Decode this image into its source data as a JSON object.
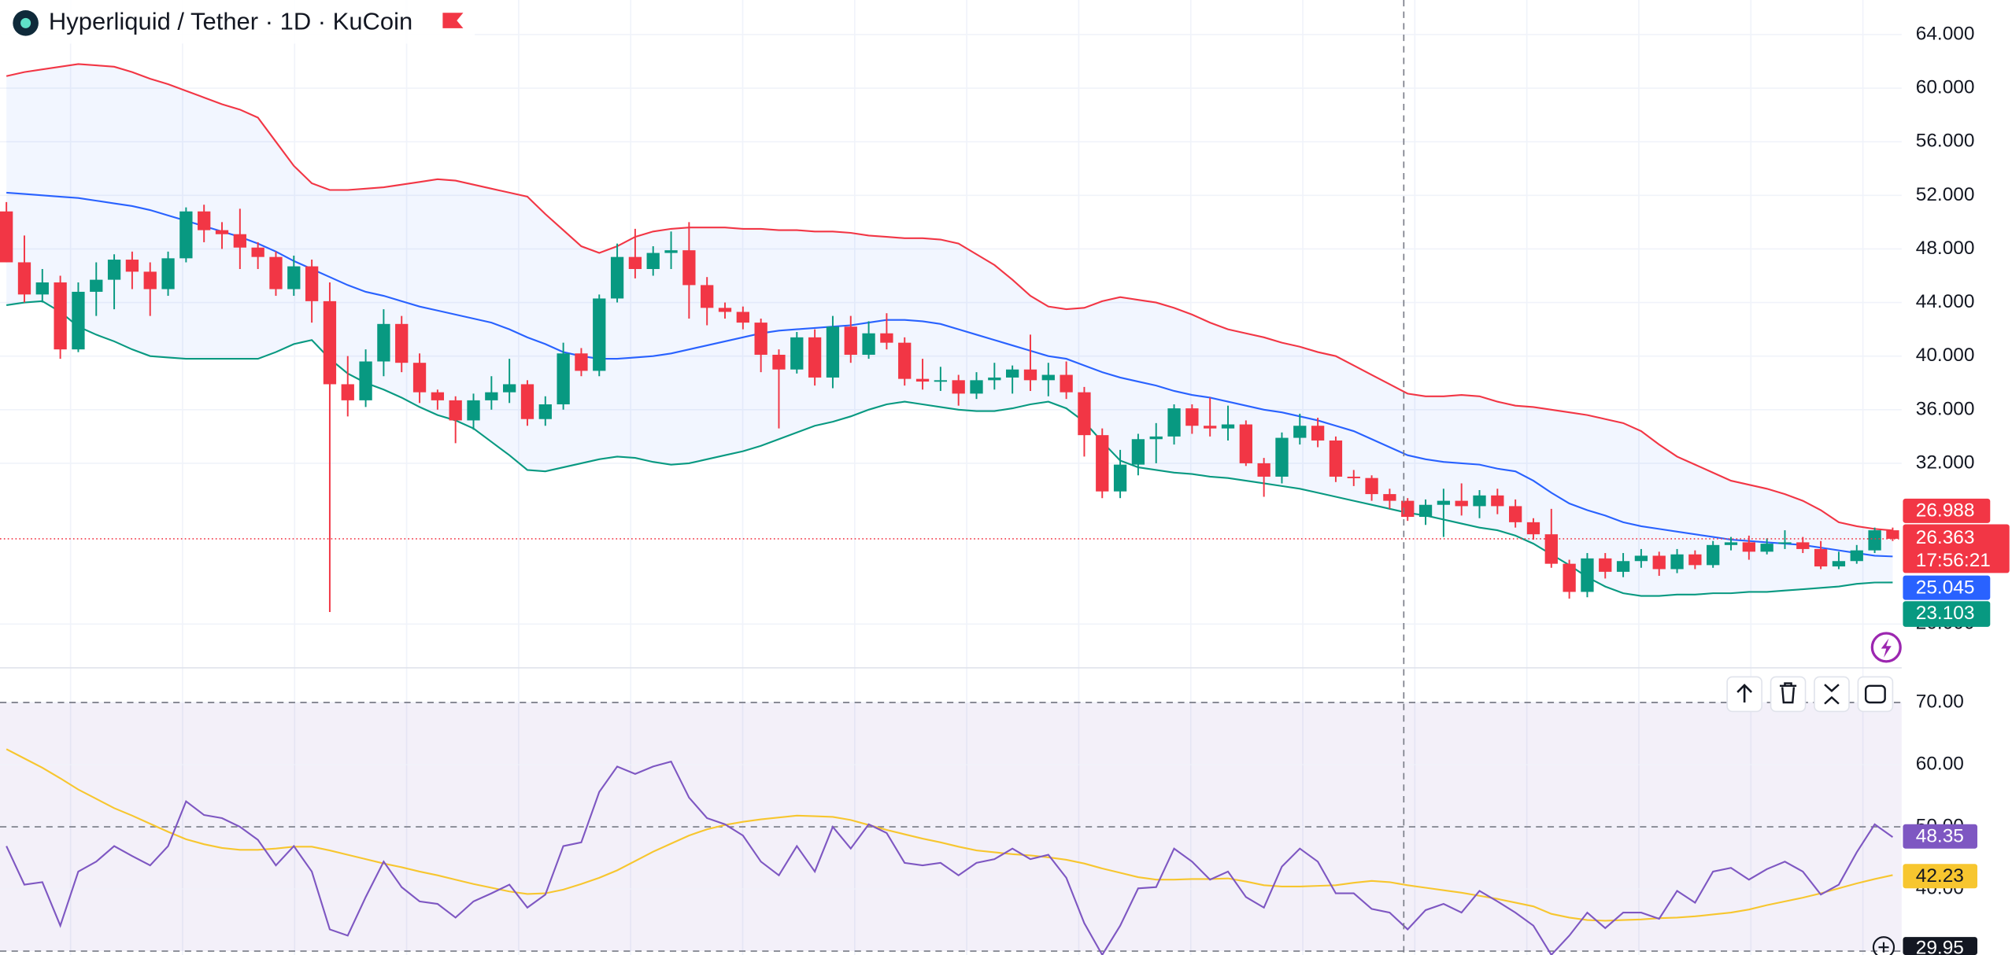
{
  "chart_data": [
    {
      "type": "candlestick",
      "title": "Hyperliquid / Tether · 1D · KuCoin",
      "ylim": [
        16.73,
        66.58
      ],
      "yticks": [
        {
          "value": 64,
          "label": "64.000"
        },
        {
          "value": 60,
          "label": "60.000"
        },
        {
          "value": 56,
          "label": "56.000"
        },
        {
          "value": 52,
          "label": "52.000"
        },
        {
          "value": 48,
          "label": "48.000"
        },
        {
          "value": 44,
          "label": "44.000"
        },
        {
          "value": 40,
          "label": "40.000"
        },
        {
          "value": 36,
          "label": "36.000"
        },
        {
          "value": 32,
          "label": "32.000"
        },
        {
          "value": 20,
          "label": "20.000"
        }
      ],
      "up_color": "#089981",
      "down_color": "#f23645",
      "open": [
        50.8,
        47,
        44.6,
        45.5,
        40.5,
        44.8,
        45.7,
        47.2,
        46.3,
        45,
        47.3,
        50.8,
        49.4,
        49.1,
        48.1,
        47.4,
        45,
        46.7,
        44.1,
        37.9,
        36.7,
        39.6,
        42.4,
        39.5,
        37.3,
        36.7,
        35.2,
        36.7,
        37.3,
        37.9,
        35.3,
        36.4,
        40.2,
        38.9,
        44.3,
        47.4,
        46.5,
        47.7,
        47.9,
        45.3,
        43.6,
        43.3,
        42.5,
        40.1,
        39,
        41.4,
        38.4,
        42.2,
        40.1,
        41.7,
        41,
        38.3,
        38.1,
        38.2,
        37.2,
        38.2,
        38.4,
        39,
        38.2,
        38.6,
        37.3,
        34.1,
        29.9,
        31.9,
        33.8,
        34,
        36.1,
        34.8,
        34.6,
        34.9,
        32,
        31,
        33.9,
        34.8,
        33.7,
        31,
        30.9,
        29.7,
        29.2,
        28,
        28.9,
        29.2,
        28.8,
        29.6,
        28.8,
        27.6,
        26.7,
        24.5,
        22.4,
        24.9,
        23.9,
        24.7,
        25.1,
        24.1,
        25.2,
        24.4,
        25.9,
        26.1,
        25.4,
        26,
        26.1,
        25.6,
        24.3,
        24.7,
        25.5,
        27
      ],
      "high": [
        51.5,
        49,
        46.5,
        46,
        45.5,
        47,
        47.6,
        47.8,
        47,
        47.8,
        51.1,
        51.3,
        50,
        51,
        48.5,
        47.8,
        47.5,
        47.2,
        45.5,
        40,
        40.5,
        43.5,
        43,
        40.2,
        37.5,
        37,
        37.2,
        38.5,
        39.8,
        38.2,
        37,
        41,
        40.6,
        44.6,
        48.4,
        49.5,
        48.2,
        49.3,
        50,
        45.9,
        44,
        43.7,
        42.8,
        40.5,
        41.8,
        42,
        43,
        43,
        42.6,
        43.2,
        41.4,
        39.8,
        39.2,
        38.6,
        38.8,
        39.5,
        39.3,
        41.6,
        39.5,
        39.6,
        37.7,
        34.6,
        33,
        34.2,
        35,
        36.4,
        36.4,
        36.9,
        36.3,
        35.2,
        32.4,
        34.3,
        35.7,
        35.4,
        34,
        31.5,
        31.1,
        30.1,
        29.4,
        29.3,
        30.1,
        30.5,
        30,
        30.1,
        29.3,
        27.9,
        28.6,
        24.8,
        25.3,
        25.3,
        25.3,
        25.6,
        25.4,
        25.6,
        25.5,
        26.2,
        26.5,
        26.6,
        26.4,
        27,
        26.5,
        26.2,
        25.4,
        25.9,
        27.2,
        27.2
      ],
      "low": [
        47,
        44,
        44,
        39.8,
        40.3,
        43,
        43.5,
        45,
        43,
        44.5,
        47,
        48.5,
        48,
        46.5,
        46.5,
        44.5,
        44.5,
        42.5,
        20.9,
        35.5,
        36.2,
        38.5,
        38.8,
        36.5,
        36,
        33.5,
        34.5,
        36,
        36.5,
        34.8,
        34.8,
        36,
        38.5,
        38.5,
        44,
        45.8,
        46,
        46.5,
        42.8,
        42.3,
        42.8,
        42,
        38.8,
        34.6,
        38.7,
        37.8,
        37.6,
        39.5,
        39.8,
        40.5,
        37.8,
        37.5,
        37.4,
        36.3,
        36.8,
        37.5,
        37.2,
        37.4,
        37,
        36.8,
        32.5,
        29.4,
        29.4,
        31.1,
        32,
        33.4,
        34.2,
        34,
        33.7,
        31.8,
        29.5,
        30.5,
        33.4,
        33.2,
        30.6,
        30.3,
        29.2,
        28.6,
        27.7,
        27.4,
        26.5,
        28.1,
        27.9,
        28.2,
        27.2,
        26.3,
        24.2,
        21.9,
        22,
        23.4,
        23.5,
        24.2,
        23.6,
        23.8,
        24.1,
        24.2,
        25.5,
        24.8,
        25.2,
        25.6,
        25.3,
        24.1,
        24.1,
        24.5,
        25.3,
        26.2
      ],
      "close": [
        47,
        44.6,
        45.5,
        40.5,
        44.8,
        45.7,
        47.2,
        46.3,
        45,
        47.3,
        50.8,
        49.4,
        49.1,
        48.1,
        47.4,
        45,
        46.7,
        44.1,
        37.9,
        36.7,
        39.6,
        42.4,
        39.5,
        37.3,
        36.7,
        35.2,
        36.7,
        37.3,
        37.9,
        35.3,
        36.4,
        40.2,
        38.9,
        44.3,
        47.4,
        46.5,
        47.7,
        47.9,
        45.3,
        43.6,
        43.3,
        42.5,
        40.1,
        39,
        41.4,
        38.4,
        42.2,
        40.1,
        41.7,
        41,
        38.3,
        38.1,
        38.2,
        37.2,
        38.2,
        38.4,
        39,
        38.2,
        38.6,
        37.3,
        34.1,
        29.9,
        31.9,
        33.8,
        34,
        36.1,
        34.8,
        34.6,
        34.9,
        32,
        31,
        33.9,
        34.8,
        33.7,
        31,
        30.9,
        29.7,
        29.2,
        28,
        28.9,
        29.2,
        28.8,
        29.6,
        28.8,
        27.6,
        26.7,
        24.5,
        22.4,
        24.9,
        23.9,
        24.7,
        25.1,
        24.1,
        25.2,
        24.4,
        25.9,
        26.1,
        25.4,
        26,
        26.1,
        25.6,
        24.3,
        24.7,
        25.5,
        27,
        26.363
      ],
      "countdown": "17:56:21",
      "bands": [
        {
          "color": "#f23645",
          "values": [
            60.9,
            61.2,
            61.4,
            61.6,
            61.8,
            61.7,
            61.6,
            61.2,
            60.7,
            60.3,
            59.8,
            59.3,
            58.8,
            58.4,
            57.8,
            56,
            54.2,
            52.9,
            52.4,
            52.4,
            52.5,
            52.6,
            52.8,
            53,
            53.2,
            53.1,
            52.8,
            52.5,
            52.2,
            51.9,
            50.6,
            49.4,
            48.2,
            47.7,
            48.2,
            48.9,
            49.3,
            49.5,
            49.6,
            49.6,
            49.6,
            49.5,
            49.5,
            49.4,
            49.4,
            49.3,
            49.3,
            49.2,
            49,
            48.9,
            48.8,
            48.8,
            48.7,
            48.4,
            47.6,
            46.8,
            45.7,
            44.5,
            43.7,
            43.5,
            43.6,
            44.1,
            44.4,
            44.2,
            44,
            43.6,
            43.1,
            42.5,
            42,
            41.7,
            41.4,
            41,
            40.7,
            40.3,
            40,
            39.3,
            38.6,
            37.9,
            37.2,
            37,
            37,
            37.1,
            37,
            36.6,
            36.3,
            36.2,
            36,
            35.8,
            35.6,
            35.3,
            35,
            34.4,
            33.4,
            32.5,
            31.9,
            31.3,
            30.7,
            30.4,
            30.1,
            29.7,
            29.2,
            28.5,
            27.6,
            27.3,
            27.1,
            26.988
          ]
        },
        {
          "color": "#2962ff",
          "values": [
            52.2,
            52.1,
            52,
            51.9,
            51.8,
            51.6,
            51.4,
            51.2,
            50.9,
            50.5,
            50.1,
            49.7,
            49.3,
            48.9,
            48.4,
            47.8,
            47.1,
            46.5,
            45.9,
            45.3,
            44.8,
            44.5,
            44.1,
            43.7,
            43.4,
            43.1,
            42.8,
            42.5,
            42,
            41.4,
            40.9,
            40.3,
            40,
            39.8,
            39.8,
            39.9,
            40,
            40.2,
            40.5,
            40.8,
            41.1,
            41.4,
            41.7,
            41.9,
            42,
            42.1,
            42.2,
            42.3,
            42.5,
            42.7,
            42.7,
            42.6,
            42.4,
            42,
            41.6,
            41.2,
            40.8,
            40.4,
            40,
            39.8,
            39.3,
            38.8,
            38.4,
            38.1,
            37.8,
            37.4,
            37.1,
            36.9,
            36.6,
            36.3,
            36,
            35.8,
            35.5,
            35.2,
            34.8,
            34.4,
            33.8,
            33.2,
            32.6,
            32.3,
            32.1,
            32,
            31.9,
            31.6,
            31.4,
            30.7,
            29.8,
            29,
            28.5,
            28.1,
            27.6,
            27.3,
            27.1,
            26.9,
            26.7,
            26.5,
            26.3,
            26.2,
            26.1,
            26,
            25.9,
            25.7,
            25.5,
            25.3,
            25.1,
            25.045
          ]
        },
        {
          "color": "#089981",
          "values": [
            43.8,
            44,
            44.1,
            43.3,
            42.2,
            41.6,
            41.1,
            40.5,
            40,
            39.9,
            39.8,
            39.8,
            39.8,
            39.8,
            39.8,
            40.3,
            40.9,
            41.2,
            39.8,
            38.7,
            38,
            37.5,
            36.9,
            36.2,
            35.6,
            35.2,
            34.6,
            33.6,
            32.6,
            31.5,
            31.4,
            31.7,
            32,
            32.3,
            32.5,
            32.4,
            32.1,
            31.9,
            32,
            32.3,
            32.6,
            32.9,
            33.3,
            33.8,
            34.3,
            34.8,
            35.1,
            35.5,
            36,
            36.4,
            36.6,
            36.4,
            36.2,
            36,
            35.9,
            35.9,
            36.1,
            36.4,
            36.6,
            36.1,
            35.1,
            33.6,
            32.2,
            31.7,
            31.5,
            31.3,
            31.2,
            31,
            30.9,
            30.7,
            30.5,
            30.3,
            30.1,
            29.8,
            29.5,
            29.2,
            28.9,
            28.6,
            28.3,
            28.1,
            27.8,
            27.5,
            27.2,
            27,
            26.6,
            26,
            25.2,
            24.4,
            23.5,
            22.8,
            22.3,
            22.1,
            22.1,
            22.2,
            22.2,
            22.3,
            22.3,
            22.4,
            22.4,
            22.5,
            22.6,
            22.7,
            22.8,
            23,
            23.1,
            23.103
          ]
        }
      ]
    },
    {
      "type": "line",
      "ylim": [
        29.38,
        75.57
      ],
      "yticks": [
        {
          "value": 70,
          "label": "70.00"
        },
        {
          "value": 60,
          "label": "60.00"
        },
        {
          "value": 50,
          "label": "50.00"
        },
        {
          "value": 40,
          "label": "40.00"
        }
      ],
      "levels": [
        70,
        50,
        30
      ],
      "crosshair": 29.95,
      "series": [
        {
          "color": "#7e57c2",
          "values": [
            46.9,
            40.7,
            41.1,
            34.1,
            42.8,
            44.4,
            46.9,
            45.3,
            43.8,
            46.9,
            54.1,
            51.9,
            51.4,
            50,
            47.9,
            43.8,
            46.9,
            42.8,
            33.5,
            32.5,
            38.7,
            44.4,
            40.3,
            38,
            37.6,
            35.4,
            38,
            39.3,
            40.7,
            37,
            39.1,
            46.9,
            47.5,
            55.6,
            59.7,
            58.5,
            59.7,
            60.5,
            54.7,
            51.4,
            50.4,
            48.6,
            44.4,
            42.2,
            46.9,
            42.8,
            50,
            46.5,
            50.4,
            49,
            44.2,
            43.8,
            44.2,
            42.2,
            44.2,
            44.8,
            46.5,
            44.8,
            45.5,
            41.8,
            34.5,
            29.4,
            34.1,
            40.1,
            40.3,
            46.5,
            44.4,
            41.5,
            42.8,
            38.7,
            37,
            43.6,
            46.5,
            44.4,
            39.3,
            39.3,
            36.8,
            36.2,
            33.5,
            36.6,
            37.6,
            36.2,
            39.7,
            38,
            36.2,
            34.1,
            29.4,
            32.5,
            36.2,
            33.7,
            36.2,
            36.2,
            35.2,
            39.7,
            37.8,
            42.8,
            43.4,
            41.5,
            43.2,
            44.4,
            42.8,
            39.1,
            40.7,
            45.9,
            50.4,
            48.35
          ]
        },
        {
          "color": "#f7c62f",
          "values": [
            62.5,
            61,
            59.5,
            57.8,
            56,
            54.5,
            53,
            51.8,
            50.5,
            49.2,
            48,
            47.2,
            46.6,
            46.3,
            46.3,
            46.5,
            46.8,
            46.8,
            46.2,
            45.5,
            44.8,
            44.1,
            43.5,
            42.8,
            42.2,
            41.5,
            40.8,
            40.2,
            39.6,
            39.2,
            39.3,
            39.9,
            40.8,
            41.8,
            43,
            44.5,
            46,
            47.3,
            48.6,
            49.6,
            50.3,
            50.8,
            51.2,
            51.5,
            51.8,
            51.7,
            51.6,
            51.1,
            50.3,
            49.5,
            48.8,
            48.1,
            47.5,
            46.8,
            46.2,
            45.9,
            45.6,
            45.4,
            45.1,
            44.7,
            44.1,
            43.3,
            42.6,
            41.9,
            41.5,
            41.5,
            41.6,
            41.6,
            41.7,
            41.2,
            40.6,
            40.4,
            40.4,
            40.5,
            40.6,
            41,
            41.3,
            41.1,
            40.6,
            40.2,
            39.8,
            39.4,
            38.9,
            38.4,
            37.8,
            37.2,
            36,
            35.4,
            35,
            34.9,
            35,
            35.1,
            35.3,
            35.4,
            35.6,
            35.9,
            36.2,
            36.7,
            37.4,
            38,
            38.6,
            39.3,
            40.1,
            40.9,
            41.6,
            42.23
          ]
        }
      ]
    }
  ]
}
